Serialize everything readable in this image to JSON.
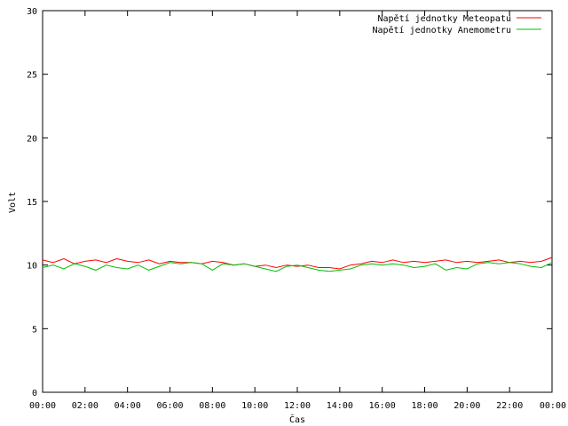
{
  "chart_data": {
    "type": "line",
    "title": "",
    "xlabel": "Čas",
    "ylabel": "Volt",
    "ylim": [
      0,
      30
    ],
    "yticks": [
      "0",
      "5",
      "10",
      "15",
      "20",
      "25",
      "30"
    ],
    "xticks": [
      "00:00",
      "02:00",
      "04:00",
      "06:00",
      "08:00",
      "10:00",
      "12:00",
      "14:00",
      "16:00",
      "18:00",
      "20:00",
      "22:00",
      "00:00"
    ],
    "xlim_hours": [
      0,
      24
    ],
    "grid": false,
    "legend_position": "top-right",
    "series": [
      {
        "name": "Napětí jednotky Meteopatu",
        "color": "#ff0000",
        "x": [
          0,
          0.5,
          1,
          1.5,
          2,
          2.5,
          3,
          3.5,
          4,
          4.5,
          5,
          5.5,
          6,
          6.5,
          7,
          7.5,
          8,
          8.5,
          9,
          9.5,
          10,
          10.5,
          11,
          11.5,
          12,
          12.5,
          13,
          13.5,
          14,
          14.5,
          15,
          15.5,
          16,
          16.5,
          17,
          17.5,
          18,
          18.5,
          19,
          19.5,
          20,
          20.5,
          21,
          21.5,
          22,
          22.5,
          23,
          23.5,
          24
        ],
        "values": [
          10.4,
          10.2,
          10.5,
          10.1,
          10.3,
          10.4,
          10.2,
          10.5,
          10.3,
          10.2,
          10.4,
          10.1,
          10.3,
          10.2,
          10.2,
          10.1,
          10.3,
          10.2,
          10.0,
          10.1,
          9.9,
          10.0,
          9.8,
          10.0,
          9.9,
          10.0,
          9.8,
          9.8,
          9.7,
          10.0,
          10.1,
          10.3,
          10.2,
          10.4,
          10.2,
          10.3,
          10.2,
          10.3,
          10.4,
          10.2,
          10.3,
          10.2,
          10.3,
          10.4,
          10.2,
          10.3,
          10.2,
          10.3,
          10.6
        ]
      },
      {
        "name": "Napětí jednotky Anemometru",
        "color": "#00c000",
        "x": [
          0,
          0.5,
          1,
          1.5,
          2,
          2.5,
          3,
          3.5,
          4,
          4.5,
          5,
          5.5,
          6,
          6.5,
          7,
          7.5,
          8,
          8.5,
          9,
          9.5,
          10,
          10.5,
          11,
          11.5,
          12,
          12.5,
          13,
          13.5,
          14,
          14.5,
          15,
          15.5,
          16,
          16.5,
          17,
          17.5,
          18,
          18.5,
          19,
          19.5,
          20,
          20.5,
          21,
          21.5,
          22,
          22.5,
          23,
          23.5,
          24
        ],
        "values": [
          9.8,
          10.0,
          9.7,
          10.1,
          9.9,
          9.6,
          10.0,
          9.8,
          9.7,
          10.0,
          9.6,
          9.9,
          10.2,
          10.1,
          10.2,
          10.1,
          9.6,
          10.1,
          10.0,
          10.1,
          9.9,
          9.7,
          9.5,
          9.9,
          10.0,
          9.8,
          9.6,
          9.5,
          9.6,
          9.7,
          10.0,
          10.1,
          10.0,
          10.1,
          10.0,
          9.8,
          9.9,
          10.1,
          9.6,
          9.8,
          9.7,
          10.1,
          10.2,
          10.1,
          10.2,
          10.1,
          9.9,
          9.8,
          10.2
        ]
      }
    ]
  }
}
